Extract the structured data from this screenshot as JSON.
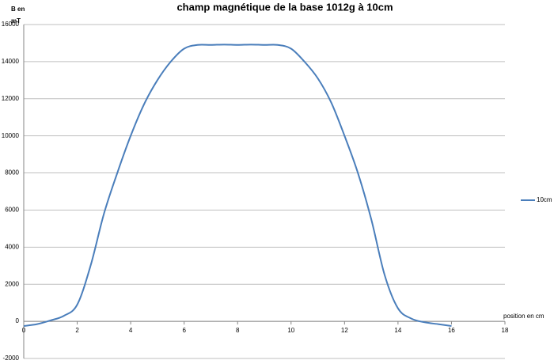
{
  "chart_data": {
    "type": "line",
    "title": "champ magnétique de la base 1012g à 10cm",
    "y_label": "B en mT",
    "x_label": "position en cm",
    "x": [
      0,
      0.5,
      1,
      1.5,
      2,
      2.5,
      3,
      3.5,
      4,
      4.5,
      5,
      5.5,
      6,
      6.5,
      7,
      7.5,
      8,
      8.5,
      9,
      9.5,
      10,
      10.5,
      11,
      11.5,
      12,
      12.5,
      13,
      13.5,
      14,
      14.5,
      15,
      15.5,
      16
    ],
    "series": [
      {
        "name": "10cm",
        "color": "#4a7ebb",
        "values": [
          -250,
          -150,
          50,
          300,
          900,
          3000,
          5800,
          8000,
          10000,
          11700,
          13000,
          14000,
          14700,
          14900,
          14900,
          14920,
          14900,
          14920,
          14900,
          14900,
          14700,
          14000,
          13100,
          11800,
          10000,
          8000,
          5500,
          2500,
          700,
          150,
          -50,
          -150,
          -250
        ]
      }
    ],
    "xlim": [
      0,
      18
    ],
    "xticks": [
      0,
      2,
      4,
      6,
      8,
      10,
      12,
      14,
      16,
      18
    ],
    "ylim": [
      -2000,
      16000
    ],
    "yticks": [
      -2000,
      0,
      2000,
      4000,
      6000,
      8000,
      10000,
      12000,
      14000,
      16000
    ],
    "grid": true,
    "legend": "right"
  }
}
